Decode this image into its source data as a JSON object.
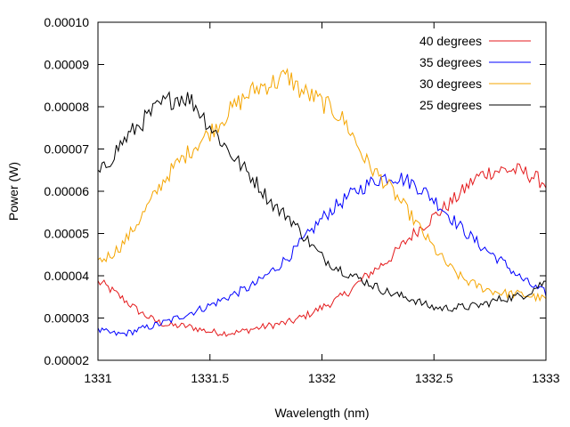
{
  "chart_data": {
    "type": "line",
    "title": "",
    "xlabel": "Wavelength (nm)",
    "ylabel": "Power (W)",
    "xlim": [
      1331,
      1333
    ],
    "ylim": [
      2e-05,
      0.0001
    ],
    "x_ticks": [
      1331,
      1331.5,
      1332,
      1332.5,
      1333
    ],
    "x_tick_labels": [
      "1331",
      "1331.5",
      "1332",
      "1332.5",
      "1333"
    ],
    "y_ticks": [
      2e-05,
      3e-05,
      4e-05,
      5e-05,
      6e-05,
      7e-05,
      8e-05,
      9e-05,
      0.0001
    ],
    "y_tick_labels": [
      "0.00002",
      "0.00003",
      "0.00004",
      "0.00005",
      "0.00006",
      "0.00007",
      "0.00008",
      "0.00009",
      "0.00010"
    ],
    "grid": false,
    "legend_position": "top-right",
    "x": [
      1331.0,
      1331.1,
      1331.2,
      1331.3,
      1331.4,
      1331.5,
      1331.6,
      1331.7,
      1331.8,
      1331.85,
      1331.9,
      1332.0,
      1332.1,
      1332.2,
      1332.3,
      1332.4,
      1332.5,
      1332.6,
      1332.7,
      1332.8,
      1332.9,
      1333.0
    ],
    "series": [
      {
        "name": "40 degrees",
        "color": "#e41a1c",
        "values": [
          3.85e-05,
          3.5e-05,
          3.1e-05,
          2.85e-05,
          2.8e-05,
          2.68e-05,
          2.65e-05,
          2.75e-05,
          2.85e-05,
          2.9e-05,
          3e-05,
          3.25e-05,
          3.55e-05,
          4e-05,
          4.4e-05,
          4.95e-05,
          5.4e-05,
          5.85e-05,
          6.35e-05,
          6.5e-05,
          6.45e-05,
          6.2e-05
        ]
      },
      {
        "name": "35 degrees",
        "color": "#0000ff",
        "values": [
          2.7e-05,
          2.62e-05,
          2.75e-05,
          2.9e-05,
          3.1e-05,
          3.3e-05,
          3.55e-05,
          3.8e-05,
          4.2e-05,
          4.45e-05,
          4.75e-05,
          5.35e-05,
          5.8e-05,
          6.15e-05,
          6.35e-05,
          6.2e-05,
          5.8e-05,
          5.25e-05,
          4.75e-05,
          4.35e-05,
          3.9e-05,
          3.6e-05
        ]
      },
      {
        "name": "30 degrees",
        "color": "#f5a500",
        "values": [
          4.35e-05,
          4.7e-05,
          5.45e-05,
          6.3e-05,
          6.9e-05,
          7.4e-05,
          7.95e-05,
          8.4e-05,
          8.6e-05,
          8.7e-05,
          8.4e-05,
          8.1e-05,
          7.65e-05,
          6.7e-05,
          6.1e-05,
          5.4e-05,
          4.65e-05,
          4.05e-05,
          3.75e-05,
          3.6e-05,
          3.55e-05,
          3.45e-05
        ]
      },
      {
        "name": "25 degrees",
        "color": "#000000",
        "values": [
          6.4e-05,
          7.1e-05,
          7.65e-05,
          8.1e-05,
          8.2e-05,
          7.55e-05,
          6.85e-05,
          6.25e-05,
          5.6e-05,
          5.4e-05,
          5.05e-05,
          4.45e-05,
          4.1e-05,
          3.85e-05,
          3.6e-05,
          3.45e-05,
          3.25e-05,
          3.25e-05,
          3.3e-05,
          3.45e-05,
          3.55e-05,
          3.85e-05
        ]
      }
    ]
  }
}
